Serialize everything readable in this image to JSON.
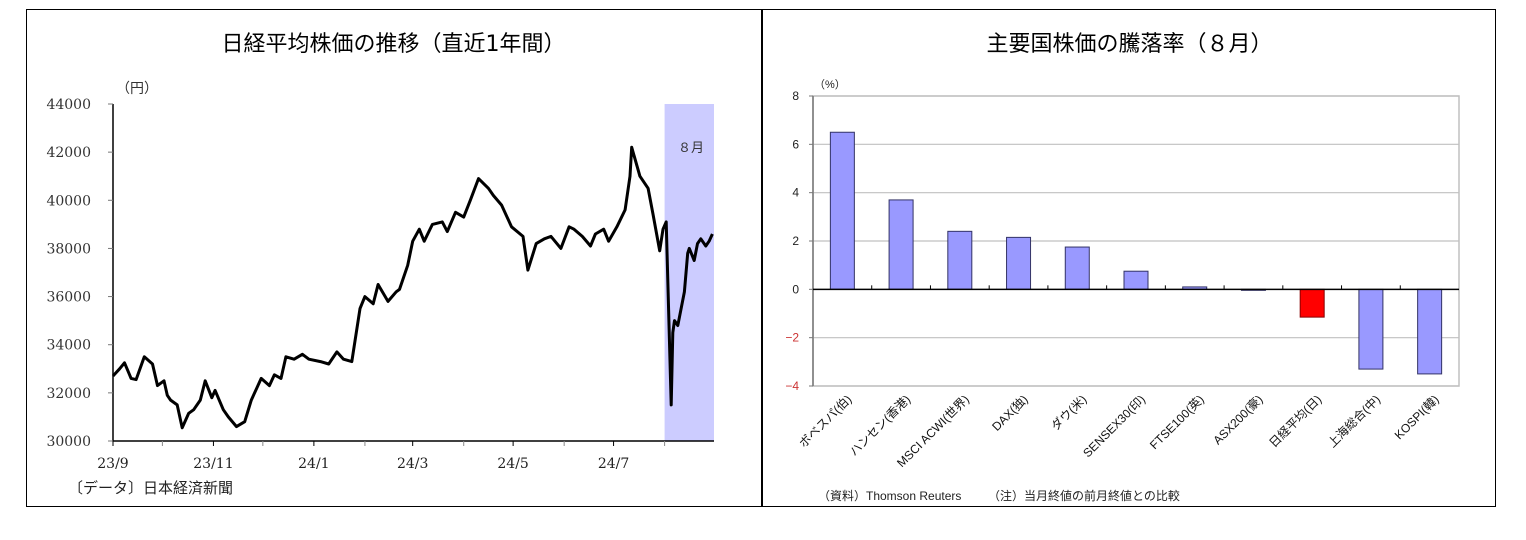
{
  "left_panel": {
    "title": "日経平均株価の推移（直近1年間）",
    "unit_label": "（円）",
    "shade_label": "８月",
    "source": "〔データ〕日本経済新聞"
  },
  "right_panel": {
    "title": "主要国株価の騰落率（８月）",
    "unit_label": "（%）",
    "source": "（資料）Thomson Reuters",
    "note": "（注）当月終値の前月終値との比較"
  },
  "colors": {
    "line": "#000000",
    "shade": "#ccccff",
    "bar": "#9999ff",
    "bar_highlight": "#ff0000",
    "negative_tick": "#cc3333",
    "grid": "#c0c0c0"
  },
  "chart_data": [
    {
      "type": "line",
      "title": "日経平均株価の推移（直近1年間）",
      "xlabel": "",
      "ylabel": "（円）",
      "ylim": [
        30000,
        44000
      ],
      "yticks": [
        30000,
        32000,
        34000,
        36000,
        38000,
        40000,
        42000,
        44000
      ],
      "xticks": [
        "23/9",
        "23/11",
        "24/1",
        "24/3",
        "24/5",
        "24/7"
      ],
      "grid": false,
      "annotation": {
        "label": "８月",
        "shaded_region": [
          "24/8/1",
          "24/8/31"
        ]
      },
      "series": [
        {
          "name": "日経平均株価",
          "x": [
            "23/9/1",
            "23/9/5",
            "23/9/8",
            "23/9/12",
            "23/9/15",
            "23/9/20",
            "23/9/25",
            "23/9/28",
            "23/10/2",
            "23/10/4",
            "23/10/6",
            "23/10/10",
            "23/10/13",
            "23/10/17",
            "23/10/20",
            "23/10/24",
            "23/10/27",
            "23/10/31",
            "23/11/2",
            "23/11/7",
            "23/11/10",
            "23/11/15",
            "23/11/20",
            "23/11/24",
            "23/11/30",
            "23/12/5",
            "23/12/8",
            "23/12/12",
            "23/12/15",
            "23/12/20",
            "23/12/25",
            "23/12/29",
            "24/1/5",
            "24/1/10",
            "24/1/15",
            "24/1/19",
            "24/1/24",
            "24/1/29",
            "24/2/1",
            "24/2/6",
            "24/2/9",
            "24/2/15",
            "24/2/20",
            "24/2/22",
            "24/2/27",
            "24/3/1",
            "24/3/5",
            "24/3/8",
            "24/3/13",
            "24/3/19",
            "24/3/22",
            "24/3/27",
            "24/4/1",
            "24/4/5",
            "24/4/10",
            "24/4/16",
            "24/4/19",
            "24/4/24",
            "24/4/30",
            "24/5/7",
            "24/5/10",
            "24/5/15",
            "24/5/20",
            "24/5/24",
            "24/5/30",
            "24/6/4",
            "24/6/7",
            "24/6/12",
            "24/6/17",
            "24/6/20",
            "24/6/25",
            "24/6/28",
            "24/7/3",
            "24/7/8",
            "24/7/11",
            "24/7/12",
            "24/7/17",
            "24/7/22",
            "24/7/25",
            "24/7/29",
            "24/7/31",
            "24/8/2",
            "24/8/5",
            "24/8/6",
            "24/8/7",
            "24/8/9",
            "24/8/13",
            "24/8/15",
            "24/8/16",
            "24/8/19",
            "24/8/21",
            "24/8/23",
            "24/8/26",
            "24/8/28",
            "24/8/30"
          ],
          "values": [
            32700,
            33000,
            33250,
            32600,
            32550,
            33500,
            33200,
            32300,
            32500,
            31900,
            31700,
            31500,
            30550,
            31150,
            31300,
            31700,
            32500,
            31800,
            32100,
            31300,
            31000,
            30600,
            30800,
            31700,
            32600,
            32300,
            32750,
            32600,
            33500,
            33400,
            33600,
            33400,
            33300,
            33200,
            33700,
            33400,
            33300,
            35500,
            36000,
            35700,
            36500,
            35800,
            36200,
            36300,
            37300,
            38300,
            38800,
            38300,
            39000,
            39100,
            38700,
            39500,
            39300,
            40000,
            40900,
            40500,
            40200,
            39800,
            38900,
            38500,
            37100,
            38200,
            38400,
            38500,
            38000,
            38900,
            38800,
            38500,
            38100,
            38600,
            38800,
            38300,
            38900,
            39600,
            41000,
            42200,
            41000,
            40500,
            39400,
            37900,
            38800,
            39100,
            31500,
            34500,
            35000,
            34800,
            36200,
            37800,
            38000,
            37500,
            38200,
            38400,
            38100,
            38300,
            38600
          ]
        }
      ]
    },
    {
      "type": "bar",
      "title": "主要国株価の騰落率（８月）",
      "xlabel": "",
      "ylabel": "（%）",
      "ylim": [
        -4,
        8
      ],
      "yticks": [
        -4,
        -2,
        0,
        2,
        4,
        6,
        8
      ],
      "grid": true,
      "categories": [
        "ボベスパ(伯)",
        "ハンセン(香港)",
        "MSCI ACWI(世界)",
        "DAX(独)",
        "ダウ(米)",
        "SENSEX30(印)",
        "FTSE100(英)",
        "ASX200(豪)",
        "日経平均(日)",
        "上海総合(中)",
        "KOSPI(韓)"
      ],
      "values": [
        6.5,
        3.7,
        2.4,
        2.15,
        1.75,
        0.75,
        0.1,
        -0.02,
        -1.15,
        -3.3,
        -3.5
      ],
      "highlight_index": 8
    }
  ]
}
